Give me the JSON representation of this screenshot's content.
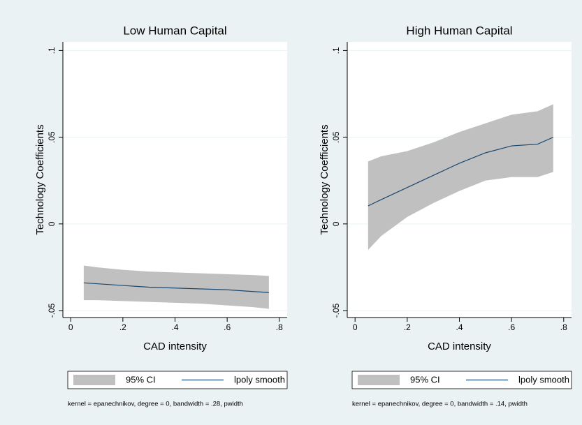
{
  "chart_data": [
    {
      "type": "line",
      "title": "Low Human Capital",
      "xlabel": "CAD intensity",
      "ylabel": "Technology Coefficients",
      "x": [
        0.05,
        0.1,
        0.2,
        0.3,
        0.4,
        0.5,
        0.6,
        0.7,
        0.76
      ],
      "series": [
        {
          "name": "95% CI",
          "color": "#c0c0c0",
          "upper": [
            -0.024,
            -0.025,
            -0.0265,
            -0.0275,
            -0.028,
            -0.0285,
            -0.029,
            -0.0295,
            -0.03
          ],
          "lower": [
            -0.044,
            -0.044,
            -0.0445,
            -0.045,
            -0.0455,
            -0.046,
            -0.047,
            -0.048,
            -0.049
          ]
        },
        {
          "name": "lpoly smooth",
          "color": "#1a476f",
          "values": [
            -0.034,
            -0.0345,
            -0.0355,
            -0.0365,
            -0.037,
            -0.0375,
            -0.038,
            -0.039,
            -0.0396
          ]
        }
      ],
      "xlim": [
        -0.03,
        0.83
      ],
      "xticks": [
        0,
        {
          "value": 0.2,
          "label": ".2"
        },
        {
          "value": 0.4,
          "label": ".4"
        },
        {
          "value": 0.6,
          "label": ".6"
        },
        {
          "value": 0.8,
          "label": ".8"
        }
      ],
      "ylim": [
        -0.054,
        0.105
      ],
      "yticks": [
        {
          "value": -0.05,
          "label": "-.05"
        },
        0,
        {
          "value": 0.05,
          "label": ".05"
        },
        {
          "value": 0.1,
          "label": ".1"
        }
      ],
      "grid": true,
      "note": "kernel = epanechnikov, degree = 0, bandwidth = .28, pwidth"
    },
    {
      "type": "line",
      "title": "High Human Capital",
      "xlabel": "CAD intensity",
      "ylabel": "Technology Coefficients",
      "x": [
        0.05,
        0.1,
        0.2,
        0.3,
        0.4,
        0.5,
        0.6,
        0.7,
        0.76
      ],
      "series": [
        {
          "name": "95% CI",
          "color": "#c0c0c0",
          "upper": [
            0.036,
            0.039,
            0.042,
            0.047,
            0.053,
            0.058,
            0.063,
            0.065,
            0.069
          ],
          "lower": [
            -0.015,
            -0.007,
            0.004,
            0.012,
            0.019,
            0.025,
            0.027,
            0.027,
            0.03
          ]
        },
        {
          "name": "lpoly smooth",
          "color": "#1a476f",
          "values": [
            0.0104,
            0.014,
            0.021,
            0.028,
            0.035,
            0.041,
            0.045,
            0.046,
            0.05
          ]
        }
      ],
      "xlim": [
        -0.03,
        0.83
      ],
      "xticks": [
        0,
        {
          "value": 0.2,
          "label": ".2"
        },
        {
          "value": 0.4,
          "label": ".4"
        },
        {
          "value": 0.6,
          "label": ".6"
        },
        {
          "value": 0.8,
          "label": ".8"
        }
      ],
      "ylim": [
        -0.054,
        0.105
      ],
      "yticks": [
        {
          "value": -0.05,
          "label": "-.05"
        },
        0,
        {
          "value": 0.05,
          "label": ".05"
        },
        {
          "value": 0.1,
          "label": ".1"
        }
      ],
      "grid": true,
      "note": "kernel = epanechnikov, degree = 0, bandwidth = .14, pwidth"
    }
  ]
}
